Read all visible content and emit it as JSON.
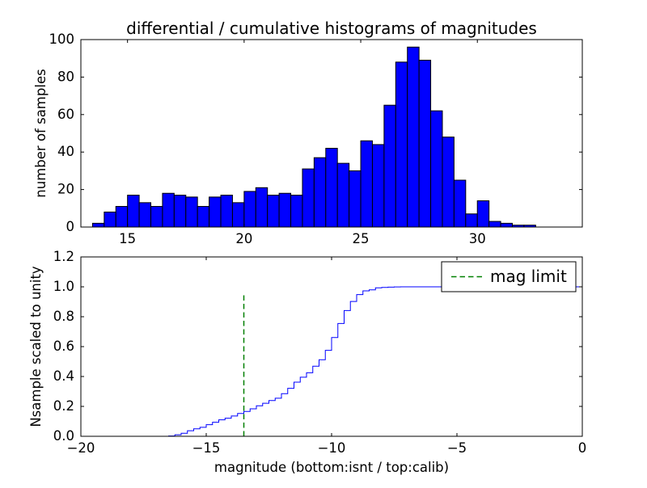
{
  "figure": {
    "background": "#ffffff"
  },
  "chart_data": [
    {
      "type": "bar",
      "title": "differential / cumulative histograms of magnitudes",
      "xlabel": "",
      "ylabel": "number of samples",
      "bar_color": "#0000ff",
      "bar_edge_color": "#000000",
      "bin_start": 13.5,
      "bin_width": 0.5,
      "values": [
        2,
        8,
        11,
        17,
        13,
        11,
        18,
        17,
        16,
        11,
        16,
        17,
        13,
        19,
        21,
        17,
        18,
        17,
        31,
        37,
        42,
        34,
        30,
        46,
        44,
        65,
        88,
        96,
        89,
        62,
        48,
        25,
        7,
        14,
        3,
        2,
        1,
        1
      ],
      "xlim": [
        13,
        34.5
      ],
      "ylim": [
        0,
        100
      ],
      "xticks": [
        15,
        20,
        25,
        30
      ],
      "xtick_labels": [
        "15",
        "20",
        "25",
        "30"
      ],
      "yticks": [
        0,
        20,
        40,
        60,
        80,
        100
      ],
      "ytick_labels": [
        "0",
        "20",
        "40",
        "60",
        "80",
        "100"
      ],
      "grid": false
    },
    {
      "type": "line",
      "title": "",
      "xlabel": "magnitude (bottom:isnt / top:calib)",
      "ylabel": "Nsample scaled to unity",
      "line_color": "#0000ff",
      "step_start": -16.5,
      "step_width": 0.25,
      "plateau_end": 0,
      "cumulative_values": [
        0.002,
        0.01,
        0.02,
        0.037,
        0.05,
        0.06,
        0.078,
        0.094,
        0.11,
        0.121,
        0.136,
        0.153,
        0.166,
        0.184,
        0.204,
        0.221,
        0.239,
        0.255,
        0.285,
        0.321,
        0.362,
        0.395,
        0.425,
        0.469,
        0.512,
        0.575,
        0.661,
        0.755,
        0.841,
        0.902,
        0.948,
        0.973,
        0.98,
        0.993,
        0.996,
        0.998,
        0.999,
        1.0
      ],
      "xlim": [
        -20,
        0
      ],
      "ylim": [
        0,
        1.2
      ],
      "xticks": [
        -20,
        -15,
        -10,
        -5,
        0
      ],
      "xtick_labels": [
        "−20",
        "−15",
        "−10",
        "−5",
        "0"
      ],
      "yticks": [
        0,
        0.2,
        0.4,
        0.6,
        0.8,
        1.0,
        1.2
      ],
      "ytick_labels": [
        "0.0",
        "0.2",
        "0.4",
        "0.6",
        "0.8",
        "1.0",
        "1.2"
      ],
      "mag_limit_line": {
        "x": -13.5,
        "y_top": 0.95,
        "color": "#008000",
        "style": "dashed"
      },
      "legend": {
        "position": "upper right",
        "entries": [
          {
            "label": "mag limit",
            "color": "#008000",
            "style": "dashed"
          }
        ]
      },
      "grid": false
    }
  ]
}
